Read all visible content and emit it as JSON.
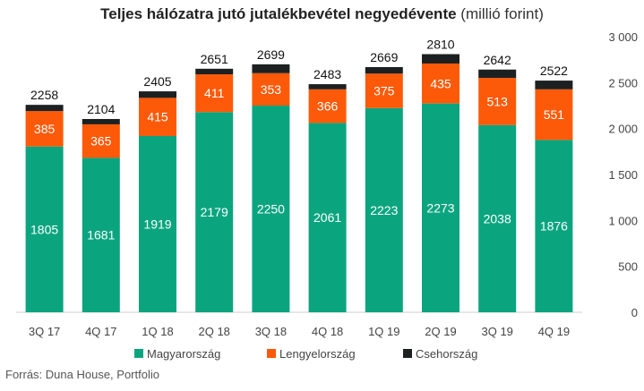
{
  "title": {
    "bold": "Teljes hálózatra jutó jutalékbevétel negyedévente",
    "light": "(millió forint)"
  },
  "source": "Forrás: Duna House, Portfolio",
  "colors": {
    "Magyarország": "#0aa57f",
    "Lengyelország": "#fc5a08",
    "Csehország": "#1d2021"
  },
  "chart_data": {
    "type": "bar",
    "stacked": true,
    "categories": [
      "3Q 17",
      "4Q 17",
      "1Q 18",
      "2Q 18",
      "3Q 18",
      "4Q 18",
      "1Q 19",
      "2Q 19",
      "3Q 19",
      "4Q 19"
    ],
    "series": [
      {
        "name": "Magyarország",
        "values": [
          1805,
          1681,
          1919,
          2179,
          2250,
          2061,
          2223,
          2273,
          2038,
          1876
        ]
      },
      {
        "name": "Lengyelország",
        "values": [
          385,
          365,
          415,
          411,
          353,
          366,
          375,
          435,
          513,
          551
        ]
      },
      {
        "name": "Csehország",
        "values": [
          68,
          58,
          71,
          61,
          96,
          56,
          71,
          102,
          91,
          95
        ]
      }
    ],
    "totals": [
      2258,
      2104,
      2405,
      2651,
      2699,
      2483,
      2669,
      2810,
      2642,
      2522
    ],
    "y_ticks": [
      "0",
      "500",
      "1 000",
      "1 500",
      "2 000",
      "2 500",
      "3 000"
    ],
    "ylim": [
      0,
      3000
    ],
    "y_axis_side": "right",
    "grid": false,
    "legend_position": "bottom"
  }
}
